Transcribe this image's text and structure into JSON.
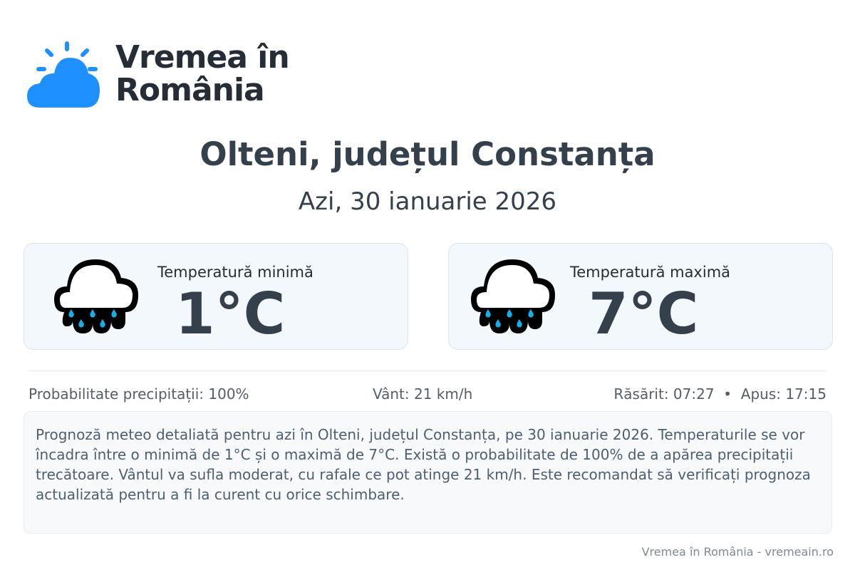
{
  "brand": {
    "name_line1": "Vremea în",
    "name_line2": "România",
    "color": "#1e90ff"
  },
  "header": {
    "title": "Olteni, județul Constanța",
    "date": "Azi, 30 ianuarie 2026"
  },
  "cards": [
    {
      "label": "Temperatură minimă",
      "value": "1°C",
      "icon": "rain-cloud-icon"
    },
    {
      "label": "Temperatură maximă",
      "value": "7°C",
      "icon": "rain-cloud-icon"
    }
  ],
  "stats": {
    "precipitation": "Probabilitate precipitații: 100%",
    "wind": "Vânt: 21 km/h",
    "sun": "Răsărit: 07:27  •  Apus: 17:15"
  },
  "description": "Prognoză meteo detaliată pentru azi în Olteni, județul Constanța, pe 30 ianuarie 2026. Temperaturile se vor încadra între o minimă de 1°C și o maximă de 7°C. Există o probabilitate de 100% de a apărea precipitații trecătoare. Vântul va sufla moderat, cu rafale ce pot atinge 21 km/h. Este recomandat să verificați prognoza actualizată pentru a fi la curent cu orice schimbare.",
  "footer": "Vremea în România - vremeain.ro"
}
